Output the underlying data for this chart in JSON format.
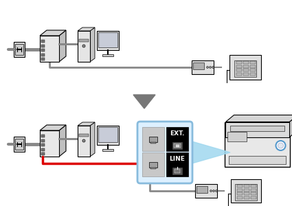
{
  "background": "#ffffff",
  "gray": "#888888",
  "dark_gray": "#666666",
  "light_gray": "#cccccc",
  "very_light_gray": "#e8e8e8",
  "red": "#dd0000",
  "blue_light": "#a0d8ef",
  "blue_box_border": "#88bbdd",
  "blue_box_fill": "#ddf0ff",
  "black": "#000000",
  "white": "#ffffff",
  "arrow_fill": "#777777",
  "fig_width": 4.25,
  "fig_height": 3.0,
  "dpi": 100
}
